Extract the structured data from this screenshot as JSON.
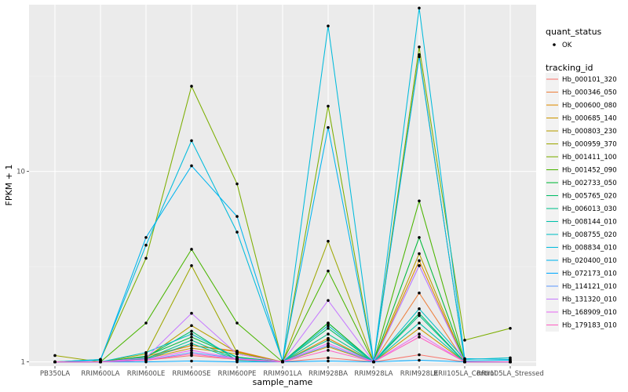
{
  "chart_data": {
    "type": "line",
    "xlabel": "sample_name",
    "ylabel": "FPKM + 1",
    "y_scale": "log10",
    "ylim": [
      0.95,
      75
    ],
    "y_ticks": [
      {
        "value": 1,
        "label": "1"
      },
      {
        "value": 10,
        "label": "10"
      }
    ],
    "grid": true,
    "categories": [
      "PB350LA",
      "RRIM600LA",
      "RRIM600LE",
      "RRIM600SE",
      "RRIM600PE",
      "RRIM901LA",
      "RRIM928BA",
      "RRIM928LA",
      "RRIM928LE",
      "RRII105LA_Control",
      "RRII105LA_Stressed"
    ],
    "legend_placement": "right",
    "legend_shape": {
      "title": "quant_status",
      "label": "OK"
    },
    "legend_color_title": "tracking_id",
    "series": [
      {
        "name": "Hb_000101_320",
        "color": "#F8766D",
        "values": [
          1,
          1,
          1.02,
          1.08,
          1.03,
          1,
          1.05,
          1,
          1.09,
          1,
          1
        ]
      },
      {
        "name": "Hb_000346_050",
        "color": "#ED813E",
        "values": [
          1,
          1,
          1.05,
          1.22,
          1.14,
          1,
          1.3,
          1,
          2.3,
          1,
          1
        ]
      },
      {
        "name": "Hb_000600_080",
        "color": "#DE8C00",
        "values": [
          1,
          1,
          1.07,
          1.22,
          1.13,
          1,
          1.33,
          1,
          3.4,
          1,
          1
        ]
      },
      {
        "name": "Hb_000685_140",
        "color": "#CD9600",
        "values": [
          1,
          1,
          1.04,
          1.18,
          1.1,
          1,
          1.2,
          1,
          1.5,
          1,
          1
        ]
      },
      {
        "name": "Hb_000803_230",
        "color": "#B79F00",
        "values": [
          1,
          1,
          1.05,
          1.55,
          1.12,
          1,
          1.6,
          1,
          3.7,
          1,
          1
        ]
      },
      {
        "name": "Hb_000959_370",
        "color": "#9DA700",
        "values": [
          1.08,
          1,
          1.1,
          3.2,
          1.12,
          1,
          4.3,
          1,
          41,
          1,
          1
        ]
      },
      {
        "name": "Hb_001411_100",
        "color": "#7CAE00",
        "values": [
          1,
          1.03,
          3.5,
          28,
          8.6,
          1,
          22,
          1,
          45,
          1.3,
          1.5
        ]
      },
      {
        "name": "Hb_001452_090",
        "color": "#49B500",
        "values": [
          1,
          1,
          1.6,
          3.9,
          1.6,
          1,
          3,
          1,
          7,
          1,
          1
        ]
      },
      {
        "name": "Hb_002733_050",
        "color": "#00BA38",
        "values": [
          1,
          1,
          1.07,
          1.35,
          1.06,
          1,
          1.6,
          1,
          4.5,
          1,
          1
        ]
      },
      {
        "name": "Hb_005765_020",
        "color": "#00BE67",
        "values": [
          1,
          1,
          1.06,
          1.45,
          1.02,
          1,
          1.5,
          1,
          1.8,
          1,
          1
        ]
      },
      {
        "name": "Hb_006013_030",
        "color": "#00C08B",
        "values": [
          1,
          1,
          1.04,
          1.3,
          1.03,
          1,
          1.4,
          1,
          1.75,
          1,
          1
        ]
      },
      {
        "name": "Hb_008144_010",
        "color": "#00C1AA",
        "values": [
          1,
          1,
          1.03,
          1.25,
          1.02,
          1,
          1.3,
          1,
          1.6,
          1,
          1
        ]
      },
      {
        "name": "Hb_008755_020",
        "color": "#00BFC4",
        "values": [
          1,
          1,
          1.12,
          1.4,
          1.05,
          1,
          1.55,
          1,
          1.9,
          1.03,
          1.05
        ]
      },
      {
        "name": "Hb_008834_010",
        "color": "#00BBDC",
        "values": [
          1,
          1.03,
          4.1,
          14.5,
          4.8,
          1.01,
          58,
          1,
          72,
          1.04,
          1.03
        ]
      },
      {
        "name": "Hb_020400_010",
        "color": "#00B4EF",
        "values": [
          1,
          1.02,
          4.5,
          10.7,
          5.8,
          1.01,
          17,
          1,
          40,
          1.01,
          1.02
        ]
      },
      {
        "name": "Hb_072173_010",
        "color": "#00A9FF",
        "values": [
          1,
          1,
          1,
          1.01,
          1,
          1,
          1.01,
          1,
          1.02,
          1,
          1
        ]
      },
      {
        "name": "Hb_114121_010",
        "color": "#619CFF",
        "values": [
          1,
          1,
          1.02,
          1.12,
          1.04,
          1,
          1.22,
          1,
          3.2,
          1,
          1
        ]
      },
      {
        "name": "Hb_131320_010",
        "color": "#C77CFF",
        "values": [
          1,
          1,
          1.05,
          1.8,
          1.1,
          1,
          2.1,
          1,
          3.2,
          1,
          1
        ]
      },
      {
        "name": "Hb_168909_010",
        "color": "#E76BF3",
        "values": [
          1,
          1,
          1.03,
          1.15,
          1.04,
          1,
          1.25,
          1,
          1.4,
          1,
          1
        ]
      },
      {
        "name": "Hb_179183_010",
        "color": "#FF61C3",
        "values": [
          1,
          1,
          1.02,
          1.1,
          1.03,
          1,
          1.15,
          1,
          1.35,
          1,
          1
        ]
      }
    ]
  }
}
